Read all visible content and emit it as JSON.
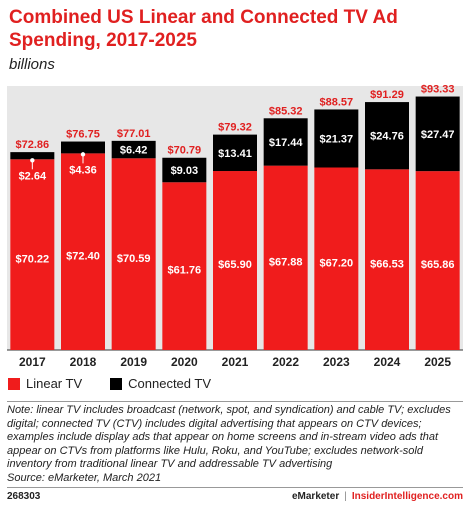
{
  "header": {
    "title": "Combined US Linear and Connected TV Ad Spending, 2017-2025",
    "subtitle": "billions"
  },
  "colors": {
    "linear": "#f01c1c",
    "connected": "#000000",
    "total_label": "#e02020",
    "plot_bg": "#e7e7e7"
  },
  "chart_data": {
    "type": "bar",
    "stacked": true,
    "categories": [
      "2017",
      "2018",
      "2019",
      "2020",
      "2021",
      "2022",
      "2023",
      "2024",
      "2025"
    ],
    "series": [
      {
        "name": "Linear TV",
        "values": [
          70.22,
          72.4,
          70.59,
          61.76,
          65.9,
          67.88,
          67.2,
          66.53,
          65.86
        ],
        "labels": [
          "$70.22",
          "$72.40",
          "$70.59",
          "$61.76",
          "$65.90",
          "$67.88",
          "$67.20",
          "$66.53",
          "$65.86"
        ]
      },
      {
        "name": "Connected TV",
        "values": [
          2.64,
          4.36,
          6.42,
          9.03,
          13.41,
          17.44,
          21.37,
          24.76,
          27.47
        ],
        "labels": [
          "$2.64",
          "$4.36",
          "$6.42",
          "$9.03",
          "$13.41",
          "$17.44",
          "$21.37",
          "$24.76",
          "$27.47"
        ]
      }
    ],
    "totals": [
      72.86,
      76.75,
      77.01,
      70.79,
      79.32,
      85.32,
      88.57,
      91.29,
      93.33
    ],
    "total_labels": [
      "$72.86",
      "$76.75",
      "$77.01",
      "$70.79",
      "$79.32",
      "$85.32",
      "$88.57",
      "$91.29",
      "$93.33"
    ],
    "ylim": [
      0,
      95
    ],
    "grid": false,
    "legend_position": "bottom-left"
  },
  "legend": {
    "items": [
      {
        "label": "Linear TV",
        "color": "#f01c1c"
      },
      {
        "label": "Connected TV",
        "color": "#000000"
      }
    ]
  },
  "note": {
    "text": "Note: linear TV includes broadcast (network, spot, and syndication) and cable TV; excludes digital; connected TV (CTV) includes digital advertising that appears on CTV devices; examples include display ads that appear on home screens and in-stream video ads that appear on CTVs from platforms like Hulu, Roku, and YouTube; excludes network-sold inventory from traditional linear TV and addressable TV advertising",
    "source": "Source: eMarketer, March 2021"
  },
  "footer": {
    "chart_id": "268303",
    "brand": "eMarketer",
    "separator": "|",
    "site": "InsiderIntelligence.com"
  }
}
